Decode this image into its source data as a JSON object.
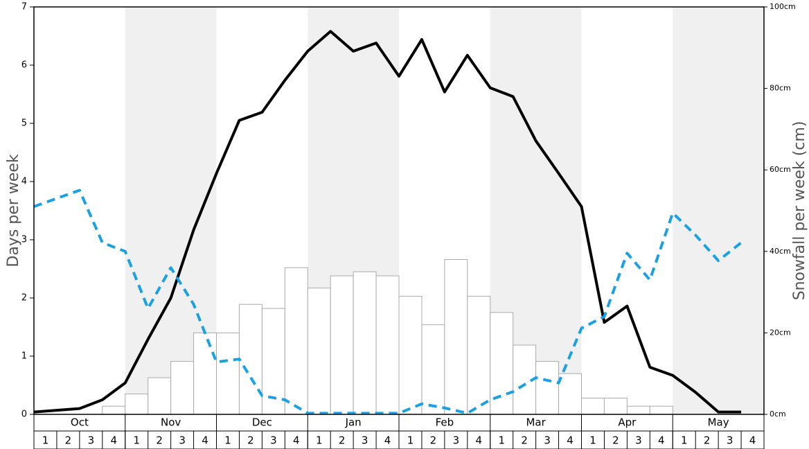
{
  "chart_data": {
    "type": "bar-line",
    "y_label": "Days per week",
    "y2_label": "Snowfall per week (cm)",
    "months": [
      "Oct",
      "Nov",
      "Dec",
      "Jan",
      "Feb",
      "Mar",
      "Apr",
      "May"
    ],
    "categories": [
      "1",
      "2",
      "3",
      "4",
      "1",
      "2",
      "3",
      "4",
      "1",
      "2",
      "3",
      "4",
      "1",
      "2",
      "3",
      "4",
      "1",
      "2",
      "3",
      "4",
      "1",
      "2",
      "3",
      "4",
      "1",
      "2",
      "3",
      "4",
      "1",
      "2",
      "3",
      "4"
    ],
    "series": [
      {
        "type": "bar",
        "axis": "y2",
        "color": "#ffffff",
        "values": [
          0,
          0,
          0,
          2,
          5,
          9,
          13,
          20,
          20,
          27,
          26,
          36,
          31,
          34,
          35,
          34,
          29,
          22,
          38,
          29,
          25,
          17,
          13,
          10,
          4,
          4,
          2,
          2,
          0,
          0,
          0,
          0
        ]
      },
      {
        "type": "line",
        "color": "#000000",
        "values": [
          0.04,
          0.07,
          0.1,
          0.25,
          0.54,
          1.29,
          2.0,
          3.17,
          4.14,
          5.05,
          5.19,
          5.74,
          6.24,
          6.58,
          6.24,
          6.38,
          5.81,
          6.44,
          5.54,
          6.17,
          5.61,
          5.46,
          4.7,
          4.14,
          3.57,
          1.58,
          1.86,
          0.81,
          0.67,
          0.38,
          0.04,
          0.04
        ]
      },
      {
        "type": "dashed-line",
        "color": "#1ba1e2",
        "values": [
          3.57,
          3.71,
          3.85,
          2.95,
          2.8,
          1.82,
          2.52,
          1.89,
          0.9,
          0.95,
          0.32,
          0.25,
          0.02,
          0.02,
          0.02,
          0.02,
          0.02,
          0.18,
          0.11,
          0.02,
          0.25,
          0.39,
          0.63,
          0.54,
          1.48,
          1.68,
          2.77,
          2.31,
          3.46,
          3.08,
          2.64,
          2.95
        ]
      }
    ],
    "ylim": [
      0,
      7
    ],
    "yticks": [
      0,
      1,
      2,
      3,
      4,
      5,
      6,
      7
    ],
    "y2lim": [
      0,
      100
    ],
    "y2ticks": [
      {
        "value": 0,
        "label": "0cm"
      },
      {
        "value": 20,
        "label": "20cm"
      },
      {
        "value": 40,
        "label": "40cm"
      },
      {
        "value": 60,
        "label": "60cm"
      },
      {
        "value": 80,
        "label": "80cm"
      },
      {
        "value": 100,
        "label": "100cm"
      }
    ]
  }
}
